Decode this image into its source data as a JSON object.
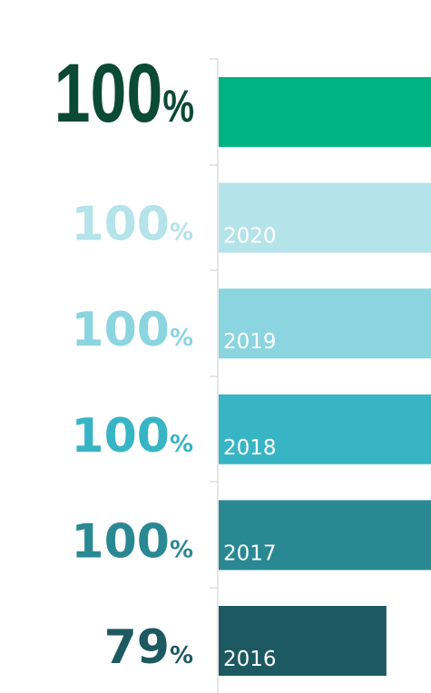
{
  "chart_data": {
    "type": "hbar",
    "categories": [
      null,
      "2020",
      "2019",
      "2018",
      "2017",
      "2016"
    ],
    "values": [
      100,
      100,
      100,
      100,
      100,
      79
    ],
    "value_labels": [
      "100%",
      "100%",
      "100%",
      "100%",
      "100%",
      "79%"
    ],
    "colors": [
      "#00b383",
      "#b5e3ea",
      "#8ad5e0",
      "#38b5c5",
      "#2a8893",
      "#1d5960"
    ],
    "label_colors": [
      "#0b4a34",
      "#b5e3ea",
      "#8ad5e0",
      "#38b5c5",
      "#2a8893",
      "#1d5960"
    ],
    "xlim": [
      0,
      100
    ]
  }
}
